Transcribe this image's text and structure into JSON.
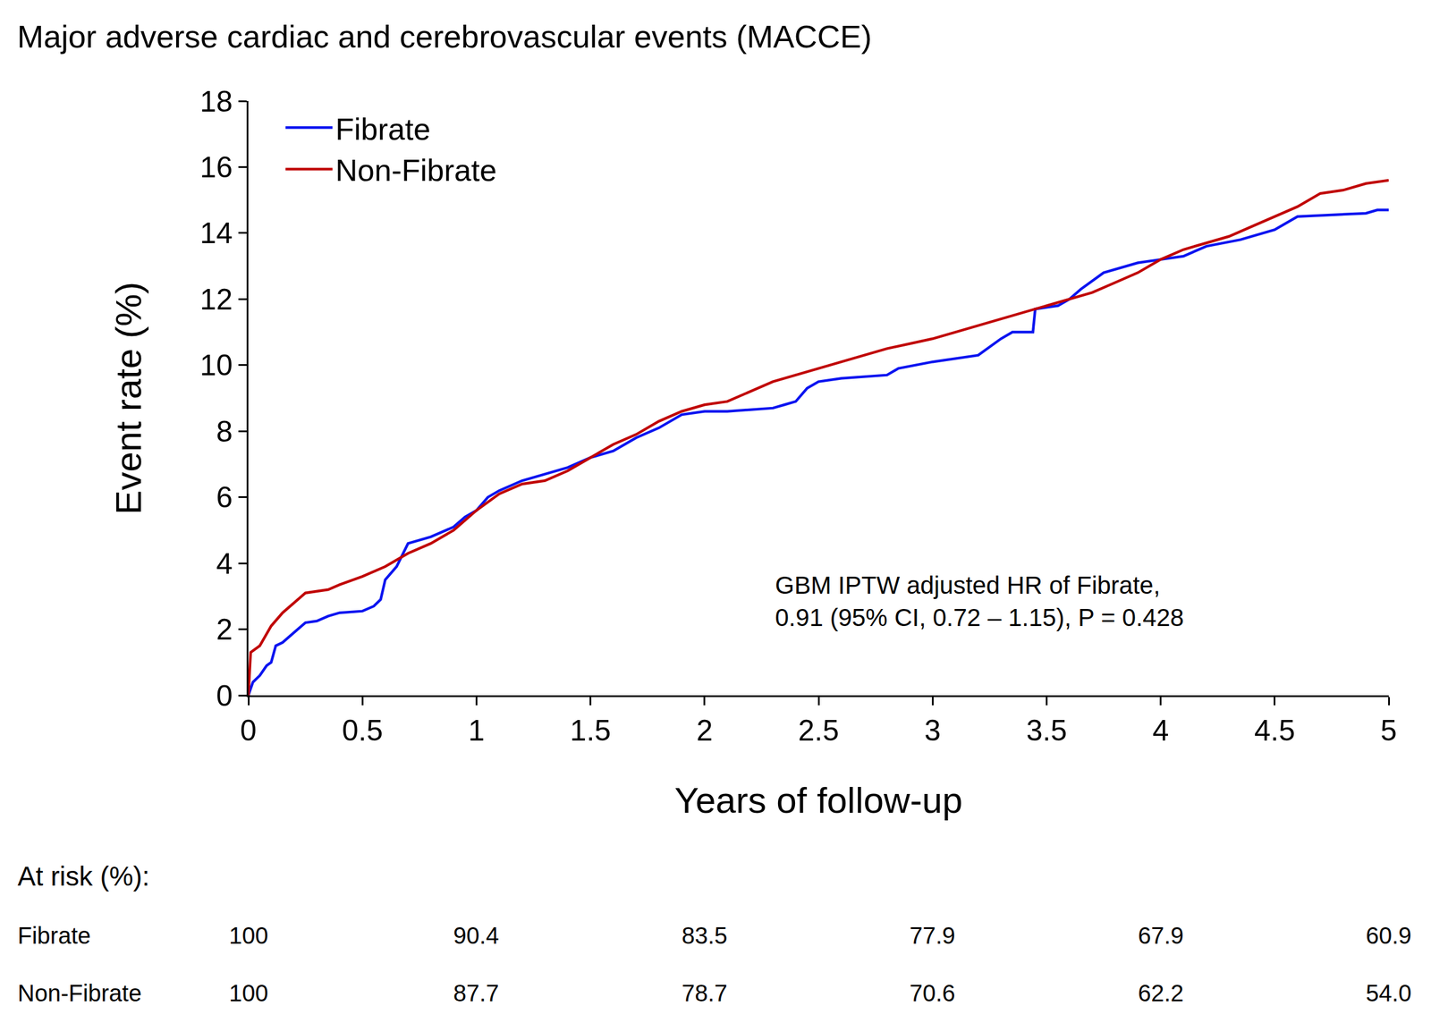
{
  "chart_data": {
    "type": "line",
    "title": "Major adverse cardiac and cerebrovascular events (MACCE)",
    "x_label": "Years of follow-up",
    "y_label": "Event rate (%)",
    "xlim": [
      0,
      5
    ],
    "ylim": [
      0,
      18
    ],
    "xticks": [
      0,
      0.5,
      1,
      1.5,
      2,
      2.5,
      3,
      3.5,
      4,
      4.5,
      5
    ],
    "yticks": [
      0,
      2,
      4,
      6,
      8,
      10,
      12,
      14,
      16,
      18
    ],
    "grid": false,
    "legend": "top-left",
    "line_style": "solid",
    "series": [
      {
        "name": "Fibrate",
        "color": "#0a14f0",
        "x": [
          0,
          0.02,
          0.05,
          0.08,
          0.1,
          0.12,
          0.15,
          0.2,
          0.25,
          0.3,
          0.35,
          0.4,
          0.5,
          0.55,
          0.58,
          0.6,
          0.65,
          0.7,
          0.8,
          0.9,
          0.95,
          1.0,
          1.05,
          1.1,
          1.2,
          1.3,
          1.4,
          1.5,
          1.6,
          1.7,
          1.8,
          1.9,
          2.0,
          2.1,
          2.3,
          2.35,
          2.4,
          2.45,
          2.5,
          2.6,
          2.8,
          2.85,
          3.0,
          3.2,
          3.3,
          3.35,
          3.44,
          3.45,
          3.55,
          3.6,
          3.65,
          3.75,
          3.85,
          3.9,
          4.0,
          4.1,
          4.2,
          4.35,
          4.5,
          4.6,
          4.9,
          4.95,
          5.0
        ],
        "values": [
          0,
          0.4,
          0.6,
          0.9,
          1.0,
          1.5,
          1.6,
          1.9,
          2.2,
          2.25,
          2.4,
          2.5,
          2.55,
          2.7,
          2.9,
          3.5,
          3.9,
          4.6,
          4.8,
          5.1,
          5.4,
          5.6,
          6.0,
          6.2,
          6.5,
          6.7,
          6.9,
          7.2,
          7.4,
          7.8,
          8.1,
          8.5,
          8.6,
          8.6,
          8.7,
          8.8,
          8.9,
          9.3,
          9.5,
          9.6,
          9.7,
          9.9,
          10.1,
          10.3,
          10.8,
          11.0,
          11.0,
          11.7,
          11.8,
          12.0,
          12.3,
          12.8,
          13.0,
          13.1,
          13.2,
          13.3,
          13.6,
          13.8,
          14.1,
          14.5,
          14.6,
          14.7,
          14.7
        ]
      },
      {
        "name": "Non-Fibrate",
        "color": "#c00000",
        "x": [
          0,
          0.01,
          0.05,
          0.1,
          0.15,
          0.2,
          0.25,
          0.35,
          0.4,
          0.5,
          0.6,
          0.7,
          0.8,
          0.9,
          1.0,
          1.1,
          1.2,
          1.3,
          1.4,
          1.5,
          1.6,
          1.7,
          1.8,
          1.9,
          2.0,
          2.1,
          2.2,
          2.3,
          2.4,
          2.5,
          2.6,
          2.7,
          2.8,
          2.9,
          3.0,
          3.1,
          3.2,
          3.3,
          3.4,
          3.5,
          3.6,
          3.7,
          3.8,
          3.9,
          4.0,
          4.1,
          4.2,
          4.3,
          4.4,
          4.5,
          4.6,
          4.7,
          4.8,
          4.9,
          5.0
        ],
        "values": [
          0,
          1.3,
          1.5,
          2.1,
          2.5,
          2.8,
          3.1,
          3.2,
          3.35,
          3.6,
          3.9,
          4.3,
          4.6,
          5.0,
          5.6,
          6.1,
          6.4,
          6.5,
          6.8,
          7.2,
          7.6,
          7.9,
          8.3,
          8.6,
          8.8,
          8.9,
          9.2,
          9.5,
          9.7,
          9.9,
          10.1,
          10.3,
          10.5,
          10.65,
          10.8,
          11.0,
          11.2,
          11.4,
          11.6,
          11.8,
          12.0,
          12.2,
          12.5,
          12.8,
          13.2,
          13.5,
          13.7,
          13.9,
          14.2,
          14.5,
          14.8,
          15.2,
          15.3,
          15.5,
          15.6
        ]
      }
    ],
    "annotation": [
      "GBM IPTW adjusted HR of Fibrate,",
      "0.91 (95% CI, 0.72 – 1.15), P = 0.428"
    ],
    "at_risk": {
      "label": "At risk (%):",
      "x": [
        0,
        1,
        2,
        3,
        4,
        5
      ],
      "rows": [
        {
          "name": "Fibrate",
          "values": [
            "100",
            "90.4",
            "83.5",
            "77.9",
            "67.9",
            "60.9"
          ]
        },
        {
          "name": "Non-Fibrate",
          "values": [
            "100",
            "87.7",
            "78.7",
            "70.6",
            "62.2",
            "54.0"
          ]
        }
      ]
    }
  }
}
